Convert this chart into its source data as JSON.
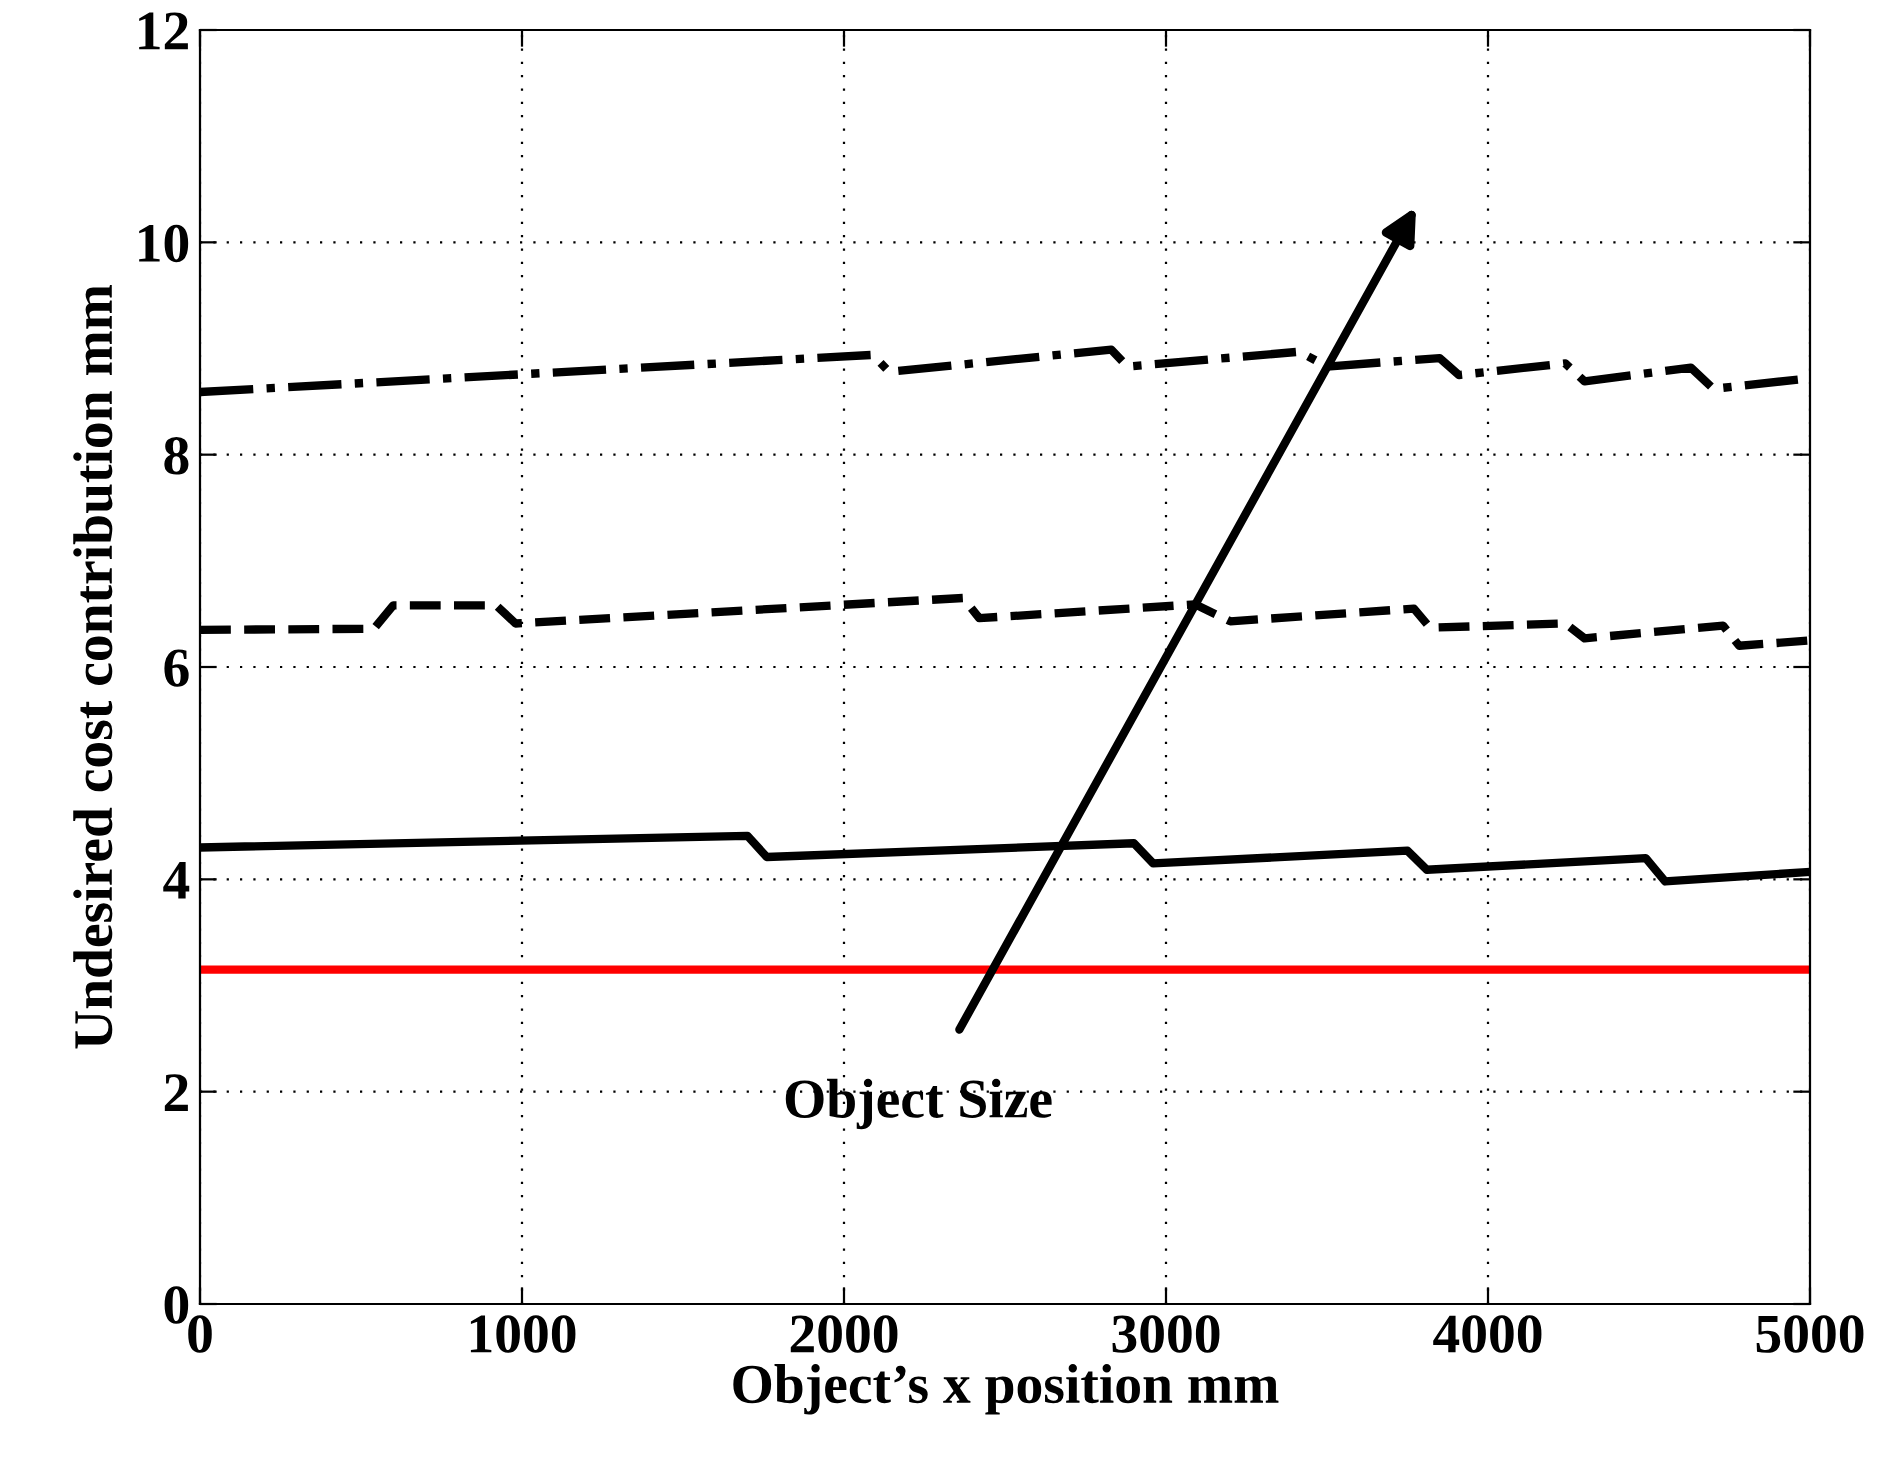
{
  "chart_data": {
    "type": "line",
    "xlabel": "Object’s x position mm",
    "ylabel": "Undesired cost contribution mm",
    "xlim": [
      0,
      5000
    ],
    "ylim": [
      0,
      12
    ],
    "xticks": [
      0,
      1000,
      2000,
      3000,
      4000,
      5000
    ],
    "yticks": [
      0,
      2,
      4,
      6,
      8,
      10,
      12
    ],
    "grid": true,
    "series": [
      {
        "color": "#000000",
        "line_style": "solid",
        "x": [
          0,
          1700,
          1760,
          2900,
          2960,
          3750,
          3810,
          4490,
          4550,
          5000
        ],
        "values": [
          4.3,
          4.41,
          4.21,
          4.34,
          4.15,
          4.27,
          4.09,
          4.2,
          3.98,
          4.07
        ]
      },
      {
        "color": "#000000",
        "line_style": "dashed",
        "x": [
          0,
          540,
          600,
          920,
          980,
          2370,
          2420,
          3090,
          3200,
          3770,
          3820,
          4240,
          4300,
          4730,
          4780,
          5000
        ],
        "values": [
          6.35,
          6.36,
          6.58,
          6.58,
          6.41,
          6.65,
          6.46,
          6.59,
          6.43,
          6.55,
          6.37,
          6.41,
          6.27,
          6.39,
          6.2,
          6.25
        ]
      },
      {
        "color": "#000000",
        "line_style": "dashdot",
        "x": [
          0,
          2090,
          2140,
          2830,
          2880,
          3415,
          3500,
          3850,
          3910,
          4240,
          4300,
          4630,
          4700,
          5000
        ],
        "values": [
          8.59,
          8.94,
          8.78,
          8.99,
          8.83,
          8.97,
          8.83,
          8.91,
          8.75,
          8.86,
          8.69,
          8.82,
          8.62,
          8.72
        ]
      }
    ],
    "ref_lines": [
      {
        "axis": "y",
        "value": 3.15,
        "color": "#ff0000"
      }
    ],
    "annotations": [
      "Object Size"
    ]
  }
}
